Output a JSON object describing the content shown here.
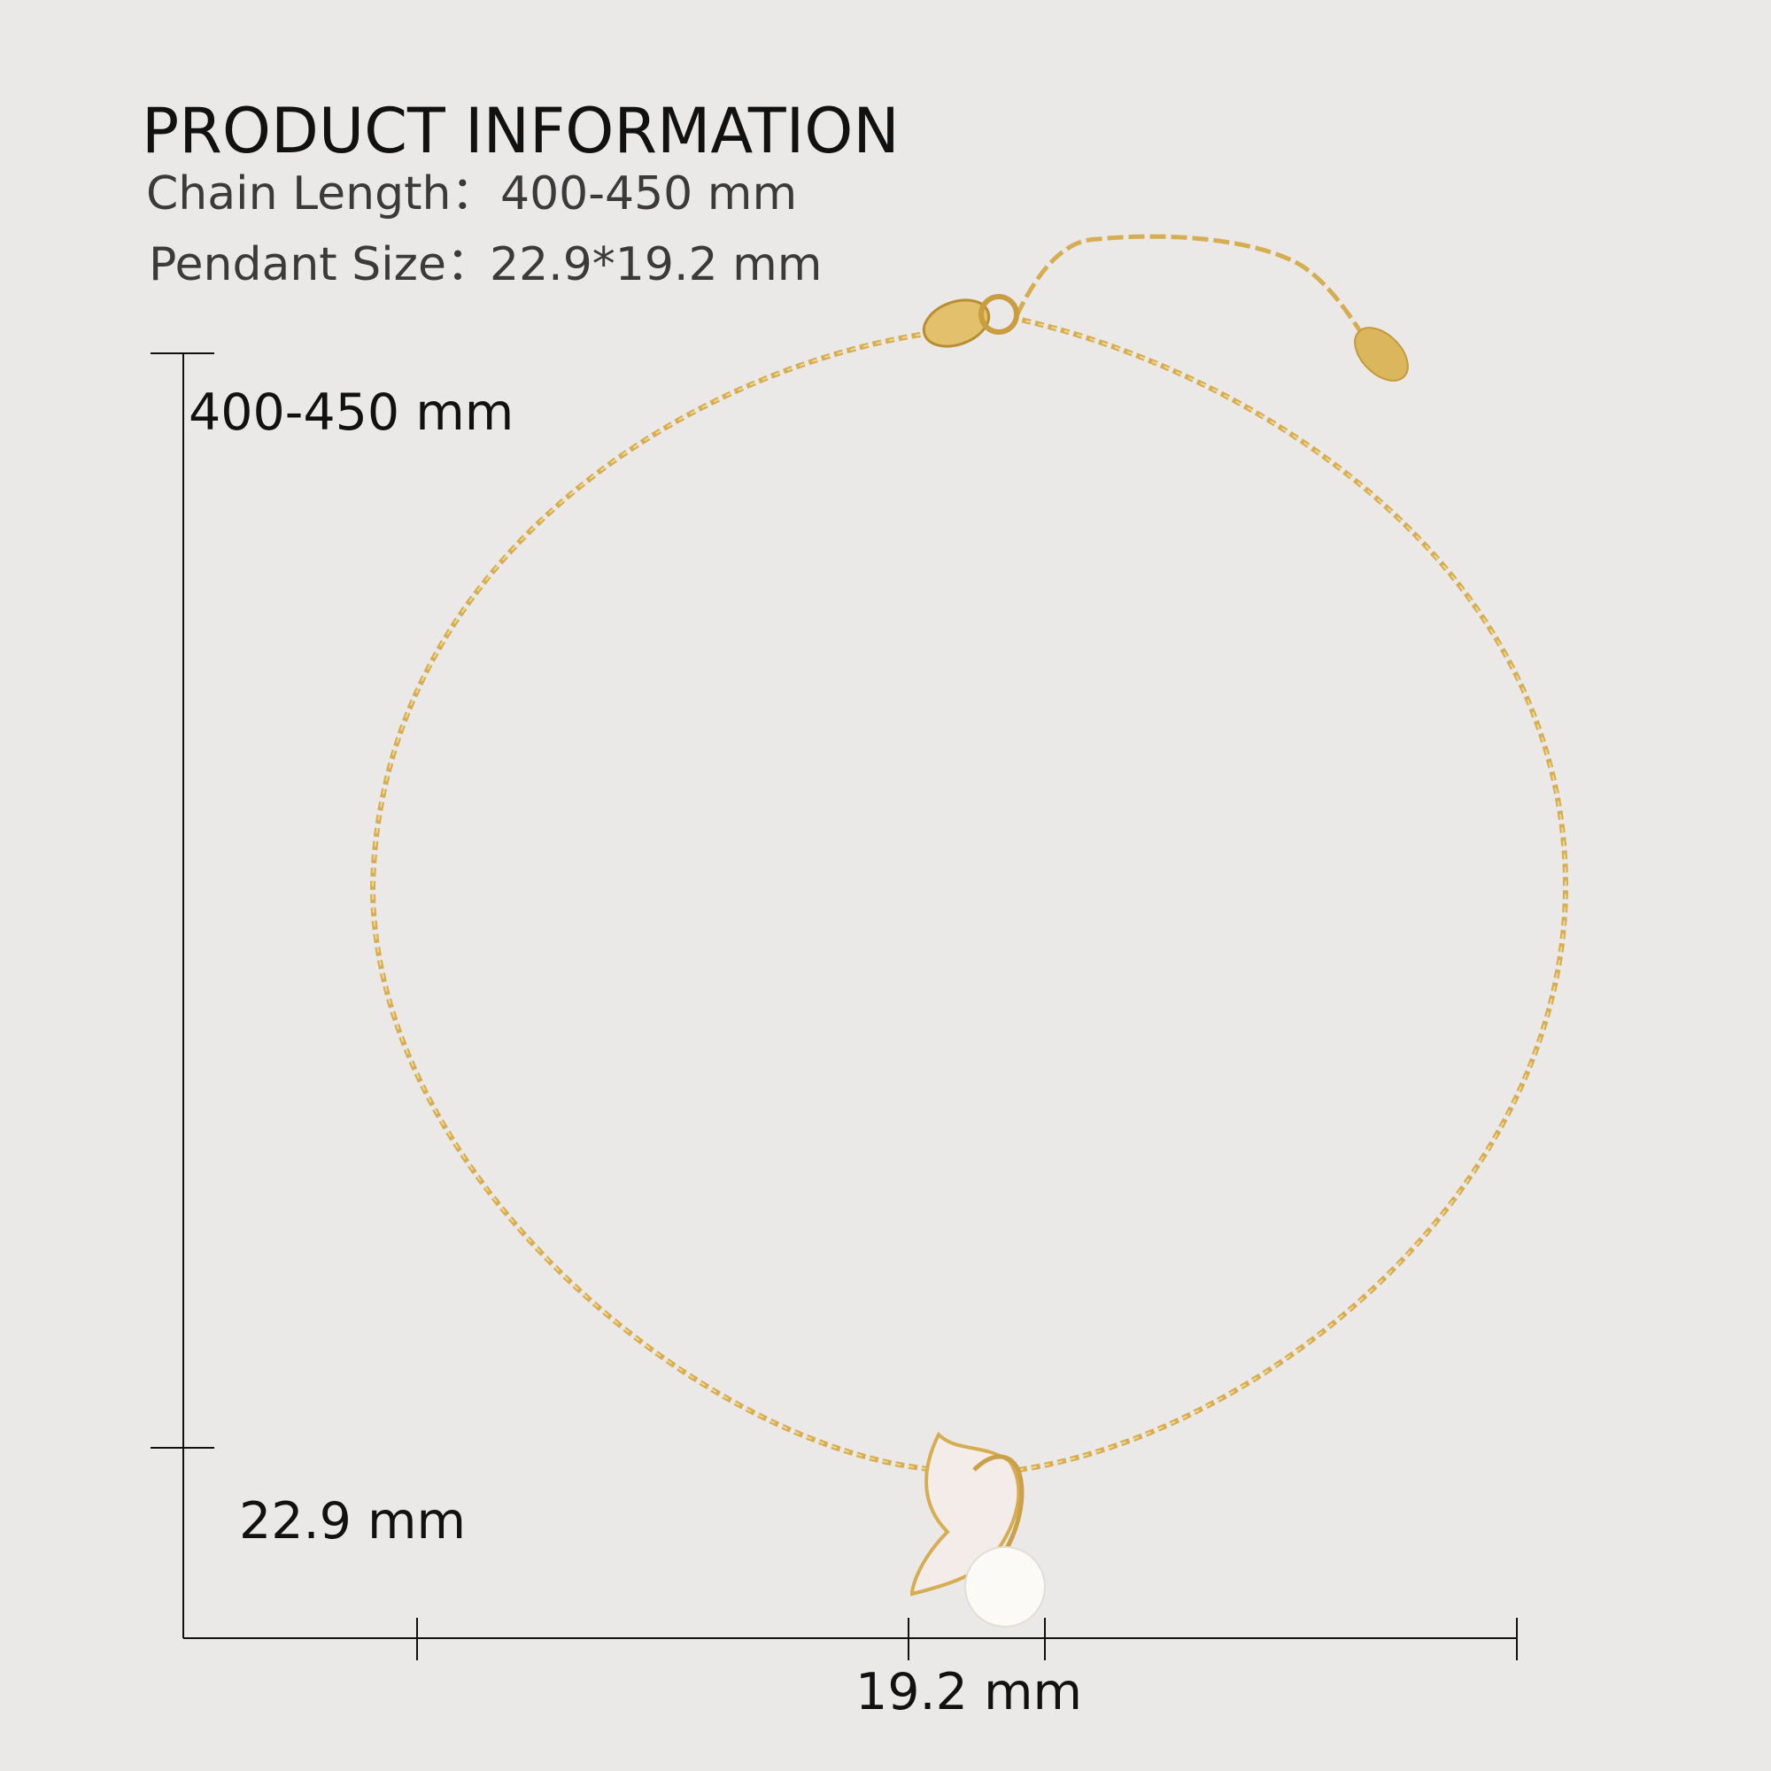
{
  "header": {
    "title": "PRODUCT INFORMATION"
  },
  "specs": [
    {
      "label": "Chain Length：",
      "value": "400-450 mm"
    },
    {
      "label": "Pendant Size：",
      "value": "22.9*19.2 mm"
    }
  ],
  "dimensions": {
    "chain": "400-450 mm",
    "pendant_height": "22.9 mm",
    "pendant_width": "19.2 mm"
  }
}
